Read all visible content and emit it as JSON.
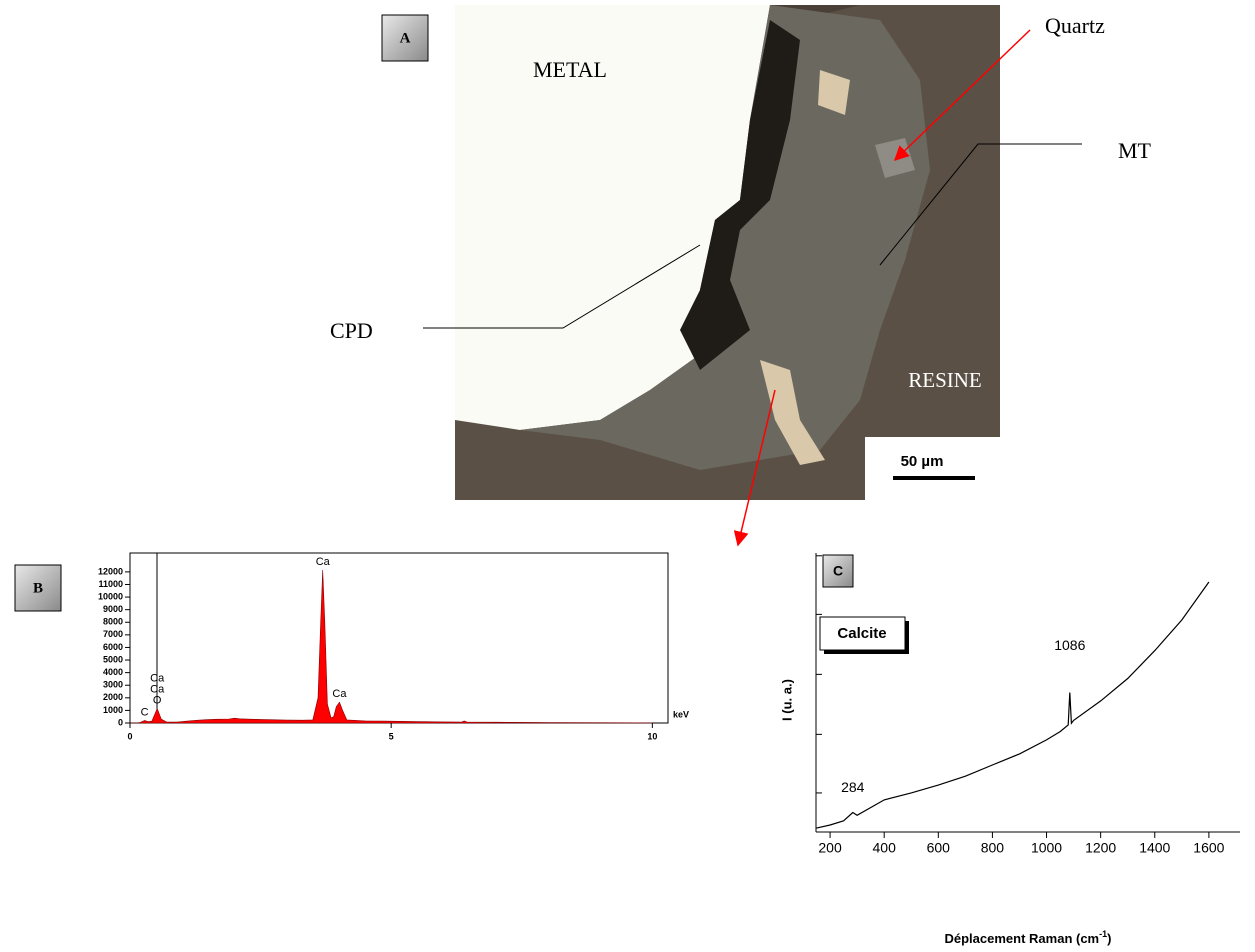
{
  "panel_a": {
    "label": "A",
    "metal": "METAL",
    "quartz": "Quartz",
    "mt": "MT",
    "cpd": "CPD",
    "resine": "RESINE",
    "scale": "50 µm"
  },
  "chart_data": [
    {
      "type": "area",
      "panel": "B",
      "xlabel": "keV",
      "color": "#ff0000",
      "x": [
        0,
        0.1,
        0.2,
        0.28,
        0.35,
        0.42,
        0.52,
        0.6,
        0.7,
        0.9,
        1.1,
        1.3,
        1.5,
        1.7,
        1.9,
        2.0,
        2.1,
        2.3,
        2.6,
        3.0,
        3.3,
        3.5,
        3.6,
        3.65,
        3.69,
        3.73,
        3.78,
        3.85,
        3.9,
        3.95,
        4.01,
        4.07,
        4.15,
        4.5,
        5,
        5.5,
        6,
        6.35,
        6.4,
        6.45,
        7,
        8,
        9,
        10
      ],
      "values": [
        0,
        0,
        50,
        200,
        100,
        150,
        1150,
        300,
        80,
        80,
        150,
        220,
        270,
        300,
        320,
        380,
        330,
        300,
        270,
        230,
        220,
        250,
        2000,
        8000,
        12150,
        8000,
        1500,
        400,
        500,
        1300,
        1650,
        1000,
        250,
        170,
        140,
        110,
        90,
        80,
        160,
        80,
        60,
        40,
        20,
        5
      ],
      "xlim": [
        0,
        10.3
      ],
      "ylim": [
        0,
        13500
      ],
      "xticks": [
        0,
        5,
        10
      ],
      "yticks": [
        0,
        1000,
        2000,
        3000,
        4000,
        5000,
        6000,
        7000,
        8000,
        9000,
        10000,
        11000,
        12000
      ],
      "peak_labels": [
        {
          "label": "C",
          "x": 0.28
        },
        {
          "label": "O",
          "x": 0.52
        },
        {
          "label": "Ca",
          "x": 0.52
        },
        {
          "label": "Ca",
          "x": 0.52
        },
        {
          "label": "Ca",
          "x": 3.69
        },
        {
          "label": "Ca",
          "x": 4.01
        }
      ]
    },
    {
      "type": "line",
      "panel": "C",
      "title": "Calcite",
      "ylabel": "I (u. a.)",
      "xlabel_main": "Déplacement Raman (cm",
      "xlabel_sup": "-1",
      "xlabel_end": ")",
      "color": "#000000",
      "x": [
        150,
        200,
        250,
        284,
        300,
        400,
        500,
        600,
        700,
        800,
        900,
        1000,
        1050,
        1080,
        1086,
        1092,
        1100,
        1200,
        1300,
        1400,
        1500,
        1600
      ],
      "values": [
        1.4,
        2.5,
        4,
        7,
        6,
        11.5,
        14,
        16.8,
        20,
        24,
        28,
        33,
        36,
        38.4,
        50,
        39,
        40,
        47,
        55,
        65,
        76,
        89.6
      ],
      "xlim": [
        148,
        1715
      ],
      "ylim": [
        0,
        100
      ],
      "xticks": [
        200,
        400,
        600,
        800,
        1000,
        1200,
        1400,
        1600
      ],
      "yticks": [
        14,
        35,
        56.5,
        78,
        99
      ],
      "peak_labels": [
        284,
        1086
      ]
    }
  ]
}
